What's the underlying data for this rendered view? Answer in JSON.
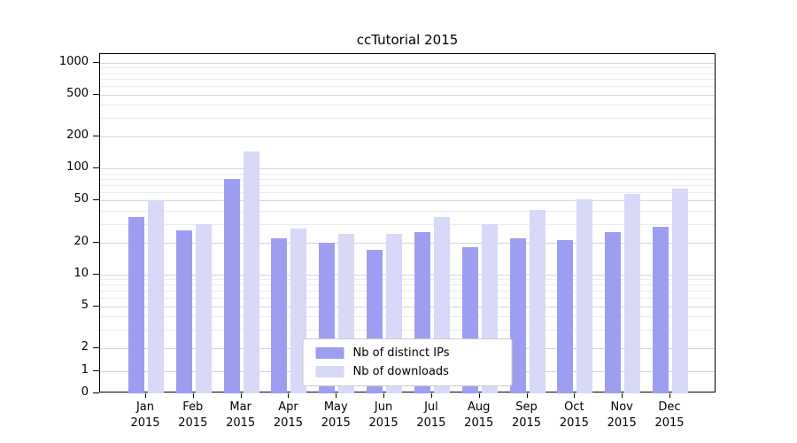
{
  "chart_data": {
    "type": "bar",
    "title": "ccTutorial 2015",
    "categories": [
      "Jan",
      "Feb",
      "Mar",
      "Apr",
      "May",
      "Jun",
      "Jul",
      "Aug",
      "Sep",
      "Oct",
      "Nov",
      "Dec"
    ],
    "year": "2015",
    "series": [
      {
        "name": "Nb of distinct IPs",
        "color": "#9e9ef0",
        "values": [
          35,
          26,
          80,
          22,
          20,
          17,
          25,
          18,
          22,
          21,
          25,
          28
        ]
      },
      {
        "name": "Nb of downloads",
        "color": "#d8d8f8",
        "values": [
          50,
          30,
          145,
          27,
          24,
          24,
          35,
          30,
          41,
          51,
          58,
          65
        ]
      }
    ],
    "yticks": [
      0,
      1,
      2,
      5,
      10,
      20,
      50,
      100,
      200,
      500,
      1000
    ],
    "yminor_ticks": [
      3,
      4,
      6,
      7,
      8,
      9,
      30,
      40,
      60,
      70,
      80,
      90,
      300,
      400,
      600,
      700,
      800,
      900
    ],
    "yscale": "symlog",
    "ylim": [
      0,
      1200
    ],
    "grid": true,
    "legend_position": "lower-center",
    "colors": {
      "grid_major": "#d6d6d6",
      "grid_minor": "#ececec",
      "axis": "#000000"
    }
  }
}
